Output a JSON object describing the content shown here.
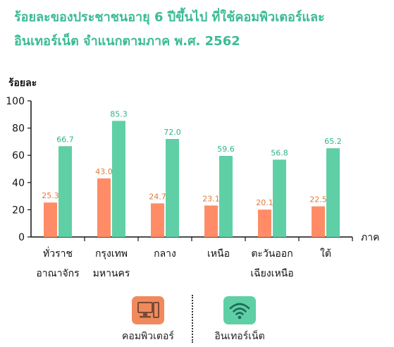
{
  "title": {
    "line1": "ร้อยละของประชาชนอายุ 6 ปีขึ้นไป ที่ใช้คอมพิวเตอร์และ",
    "line2": "อินเทอร์เน็ต จำแนกตามภาค พ.ศ. 2562"
  },
  "colors": {
    "computer": "#ff8c66",
    "internet": "#5fcfa6",
    "title": "#3dbb96",
    "computer_label": "#e07a3a",
    "internet_label": "#2fb38a"
  },
  "chart_data": {
    "type": "bar",
    "ylabel": "ร้อยละ",
    "xlabel": "ภาค",
    "ylim": [
      0,
      100
    ],
    "yticks": [
      0,
      20,
      40,
      60,
      80,
      100
    ],
    "categories": [
      [
        "ทั่วราช",
        "อาณาจักร"
      ],
      [
        "กรุงเทพ",
        "มหานคร"
      ],
      [
        "กลาง"
      ],
      [
        "เหนือ"
      ],
      [
        "ตะวันออก",
        "เฉียงเหนือ"
      ],
      [
        "ใต้"
      ]
    ],
    "series": [
      {
        "name": "คอมพิวเตอร์",
        "values": [
          25.3,
          43.0,
          24.7,
          23.1,
          20.1,
          22.5
        ]
      },
      {
        "name": "อินเทอร์เน็ต",
        "values": [
          66.7,
          85.3,
          72.0,
          59.6,
          56.8,
          65.2
        ]
      }
    ]
  },
  "legend": {
    "computer": {
      "label": "คอมพิวเตอร์",
      "icon": "computer-icon"
    },
    "internet": {
      "label": "อินเทอร์เน็ต",
      "icon": "wifi-icon"
    }
  }
}
